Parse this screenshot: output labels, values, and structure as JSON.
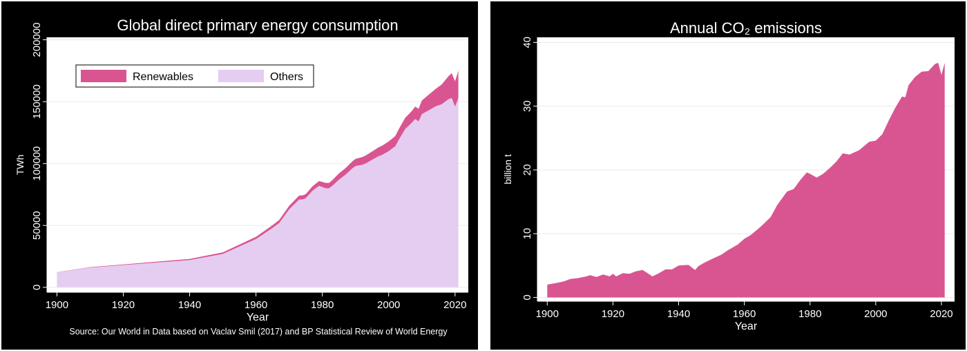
{
  "chart_data": [
    {
      "type": "area",
      "title": "Global direct primary energy consumption",
      "xlabel": "Year",
      "ylabel": "TWh",
      "source": "Source: Our World in Data based on Vaclav Smil (2017) and BP Statistical Review of World Energy",
      "xlim": [
        1897,
        2024
      ],
      "ylim": [
        -4000,
        202000
      ],
      "xticks": [
        1900,
        1920,
        1940,
        1960,
        1980,
        2000,
        2020
      ],
      "yticks": [
        0,
        50000,
        100000,
        150000,
        200000
      ],
      "grid": true,
      "stacked": true,
      "legend": {
        "placement": "top-left",
        "entries": [
          "Renewables",
          "Others"
        ]
      },
      "x": [
        1900,
        1910,
        1920,
        1930,
        1940,
        1950,
        1955,
        1960,
        1965,
        1967,
        1970,
        1973,
        1974,
        1975,
        1977,
        1979,
        1980,
        1981,
        1982,
        1983,
        1985,
        1987,
        1989,
        1990,
        1992,
        1993,
        1995,
        1997,
        1998,
        2000,
        2002,
        2003,
        2005,
        2007,
        2008,
        2009,
        2010,
        2012,
        2014,
        2016,
        2018,
        2019,
        2020,
        2021
      ],
      "series": [
        {
          "name": "Others",
          "color": "#e4cdf0",
          "values": [
            12000,
            16000,
            18000,
            20000,
            22000,
            27000,
            33000,
            39000,
            48000,
            52000,
            63000,
            71000,
            71000,
            72000,
            78000,
            82000,
            81000,
            80000,
            80000,
            82000,
            87000,
            91000,
            96000,
            98000,
            99000,
            100000,
            103000,
            106000,
            107000,
            110000,
            114000,
            119000,
            128000,
            133000,
            136000,
            134000,
            140000,
            143000,
            146000,
            148000,
            152000,
            153000,
            146000,
            153000
          ]
        },
        {
          "name": "Renewables",
          "color": "#d95591",
          "values": [
            200,
            300,
            500,
            700,
            900,
            1200,
            1500,
            1800,
            2200,
            2400,
            2800,
            3100,
            3200,
            3300,
            3600,
            3900,
            4100,
            4300,
            4400,
            4600,
            5000,
            5300,
            5600,
            5800,
            6200,
            6400,
            6800,
            7200,
            7400,
            7800,
            8200,
            8500,
            9000,
            9500,
            10000,
            10200,
            11000,
            12500,
            14000,
            16000,
            18500,
            20000,
            20500,
            22000
          ]
        }
      ]
    },
    {
      "type": "area",
      "title": "Annual CO₂ emissions",
      "xlabel": "Year",
      "ylabel": "billion t",
      "xlim": [
        1897,
        2024
      ],
      "ylim": [
        -0.6,
        40.8
      ],
      "xticks": [
        1900,
        1920,
        1940,
        1960,
        1980,
        2000,
        2020
      ],
      "yticks": [
        0,
        10,
        20,
        30,
        40
      ],
      "grid": true,
      "x": [
        1900,
        1902,
        1905,
        1907,
        1909,
        1912,
        1913,
        1915,
        1917,
        1919,
        1920,
        1921,
        1923,
        1925,
        1927,
        1929,
        1930,
        1932,
        1934,
        1936,
        1938,
        1940,
        1943,
        1945,
        1946,
        1948,
        1950,
        1953,
        1955,
        1958,
        1960,
        1962,
        1965,
        1968,
        1970,
        1973,
        1975,
        1977,
        1979,
        1980,
        1982,
        1984,
        1986,
        1988,
        1990,
        1992,
        1995,
        1998,
        2000,
        2002,
        2004,
        2006,
        2008,
        2009,
        2010,
        2012,
        2014,
        2016,
        2018,
        2019,
        2020,
        2021
      ],
      "series": [
        {
          "name": "",
          "color": "#d95591",
          "values": [
            2.0,
            2.2,
            2.5,
            2.9,
            3.0,
            3.3,
            3.5,
            3.2,
            3.6,
            3.3,
            3.7,
            3.3,
            3.8,
            3.7,
            4.1,
            4.3,
            4.0,
            3.3,
            3.8,
            4.4,
            4.4,
            5.0,
            5.1,
            4.3,
            4.9,
            5.5,
            6.0,
            6.7,
            7.4,
            8.3,
            9.2,
            9.8,
            11.1,
            12.6,
            14.5,
            16.6,
            17.0,
            18.4,
            19.6,
            19.4,
            18.8,
            19.4,
            20.3,
            21.3,
            22.6,
            22.4,
            23.1,
            24.4,
            24.6,
            25.6,
            27.8,
            29.8,
            31.5,
            31.4,
            33.3,
            34.6,
            35.4,
            35.5,
            36.6,
            36.8,
            34.9,
            36.8
          ]
        }
      ]
    }
  ]
}
